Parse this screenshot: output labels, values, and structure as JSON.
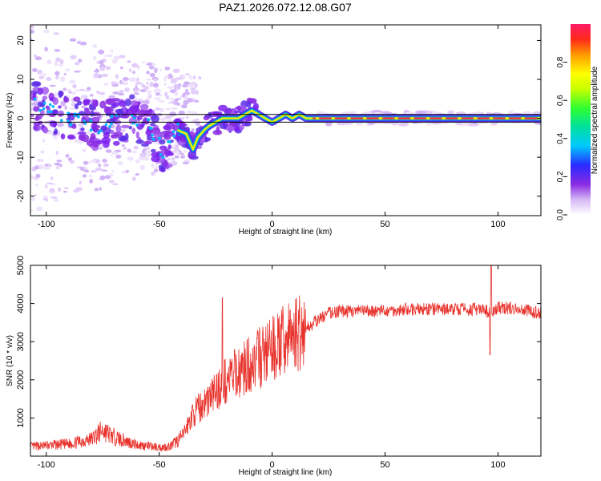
{
  "figure_title": "PAZ1.2026.072.12.08.G07",
  "colors": {
    "snr_line": "#e8322c",
    "band_line": "#000000",
    "frame": "#000000"
  },
  "chart_data": [
    {
      "type": "heatmap",
      "name": "spectrogram",
      "title": "PAZ1.2026.072.12.08.G07",
      "xlabel": "Height of straight line (km)",
      "ylabel": "Frequency (Hz)",
      "xlim": [
        -107,
        119
      ],
      "ylim": [
        -25,
        24
      ],
      "xticks": [
        -100,
        -50,
        0,
        50,
        100
      ],
      "yticks": [
        -20,
        -10,
        0,
        10,
        20
      ],
      "colorbar": {
        "label": "Normalized spectral amplitude",
        "range": [
          0,
          1
        ],
        "ticks": [
          0.0,
          0.2,
          0.4,
          0.6,
          0.8
        ],
        "tick_labels": [
          "0.0",
          "0.2",
          "0.4",
          "0.6",
          "0.8"
        ]
      },
      "ridge": {
        "x": [
          -105,
          -95,
          -85,
          -75,
          -65,
          -55,
          -48,
          -42,
          -38,
          -35,
          -33,
          -30,
          -28,
          -25,
          -22,
          -18,
          -15,
          -12,
          -9,
          -6,
          -3,
          0,
          3,
          6,
          9,
          12,
          15,
          20,
          30,
          50,
          70,
          90,
          96,
          119
        ],
        "freq": [
          3,
          1,
          -1,
          -2,
          0,
          -1,
          -9,
          -3,
          -4,
          -8,
          -5,
          -3,
          -2,
          -1,
          0,
          0,
          0,
          1,
          2,
          1,
          0,
          -1,
          0,
          1,
          0,
          1,
          0,
          0,
          0,
          0,
          0,
          0,
          0,
          0
        ]
      },
      "band_lines": [
        1,
        -1
      ]
    },
    {
      "type": "line",
      "name": "snr",
      "xlabel": "Height of straight line (km)",
      "ylabel": "SNR (10 * v/v)",
      "xlim": [
        -107,
        119
      ],
      "ylim": [
        0,
        5000
      ],
      "xticks": [
        -100,
        -50,
        0,
        50,
        100
      ],
      "yticks": [
        1000,
        2000,
        3000,
        4000,
        5000
      ],
      "series": [
        {
          "name": "SNR",
          "x": [
            -107,
            -100,
            -90,
            -80,
            -75,
            -70,
            -60,
            -50,
            -45,
            -40,
            -35,
            -30,
            -25,
            -20,
            -15,
            -10,
            -5,
            0,
            5,
            10,
            15,
            20,
            25,
            30,
            40,
            50,
            60,
            70,
            80,
            90,
            95,
            97,
            100,
            110,
            119
          ],
          "values": [
            250,
            280,
            320,
            450,
            680,
            500,
            300,
            230,
            260,
            500,
            1100,
            1400,
            1700,
            2000,
            2200,
            2400,
            2600,
            2800,
            3000,
            3200,
            3350,
            3550,
            3750,
            3800,
            3800,
            3800,
            3850,
            3850,
            3850,
            3850,
            3800,
            3700,
            3900,
            3850,
            3750
          ]
        }
      ],
      "annotations": [
        {
          "x": -22,
          "value": 4150
        },
        {
          "x": 97,
          "value": 5000
        },
        {
          "x": 96.5,
          "value": 2650
        }
      ]
    }
  ]
}
